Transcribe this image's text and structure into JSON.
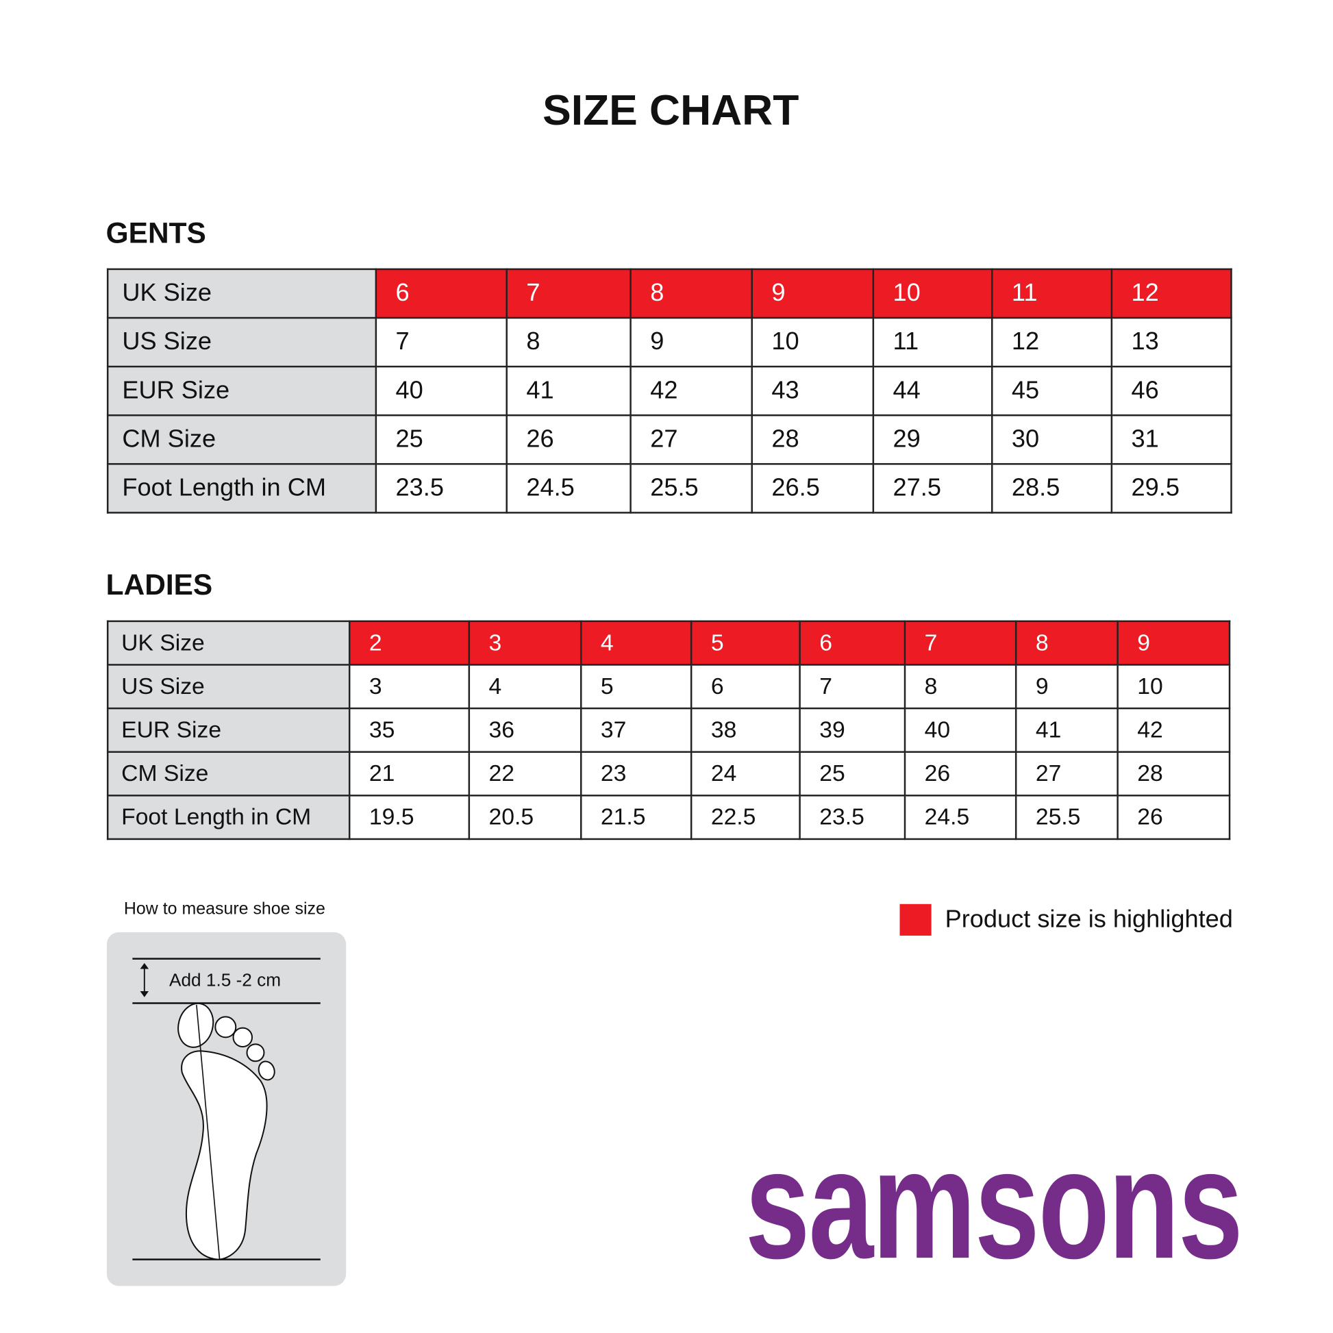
{
  "title": "SIZE CHART",
  "colors": {
    "highlight": "#ed1c24",
    "label_bg": "#dcdddf",
    "brand": "#762d8a"
  },
  "gents": {
    "label": "GENTS",
    "rows": [
      {
        "label": "UK Size",
        "values": [
          "6",
          "7",
          "8",
          "9",
          "10",
          "11",
          "12"
        ],
        "highlighted": true
      },
      {
        "label": "US Size",
        "values": [
          "7",
          "8",
          "9",
          "10",
          "11",
          "12",
          "13"
        ]
      },
      {
        "label": "EUR Size",
        "values": [
          "40",
          "41",
          "42",
          "43",
          "44",
          "45",
          "46"
        ]
      },
      {
        "label": "CM Size",
        "values": [
          "25",
          "26",
          "27",
          "28",
          "29",
          "30",
          "31"
        ]
      },
      {
        "label": "Foot Length in CM",
        "values": [
          "23.5",
          "24.5",
          "25.5",
          "26.5",
          "27.5",
          "28.5",
          "29.5"
        ]
      }
    ]
  },
  "ladies": {
    "label": "LADIES",
    "rows": [
      {
        "label": "UK Size",
        "values": [
          "2",
          "3",
          "4",
          "5",
          "6",
          "7",
          "8",
          "9"
        ],
        "highlighted": true
      },
      {
        "label": "US Size",
        "values": [
          "3",
          "4",
          "5",
          "6",
          "7",
          "8",
          "9",
          "10"
        ]
      },
      {
        "label": "EUR Size",
        "values": [
          "35",
          "36",
          "37",
          "38",
          "39",
          "40",
          "41",
          "42"
        ]
      },
      {
        "label": "CM Size",
        "values": [
          "21",
          "22",
          "23",
          "24",
          "25",
          "26",
          "27",
          "28"
        ]
      },
      {
        "label": "Foot Length in CM",
        "values": [
          "19.5",
          "20.5",
          "21.5",
          "22.5",
          "23.5",
          "24.5",
          "25.5",
          "26"
        ]
      }
    ]
  },
  "legend": {
    "text": "Product size is highlighted"
  },
  "measure": {
    "title": "How to measure shoe size",
    "add_text": "Add 1.5 -2 cm",
    "icon": "foot-measure-icon"
  },
  "logo": {
    "text": "samsons"
  }
}
